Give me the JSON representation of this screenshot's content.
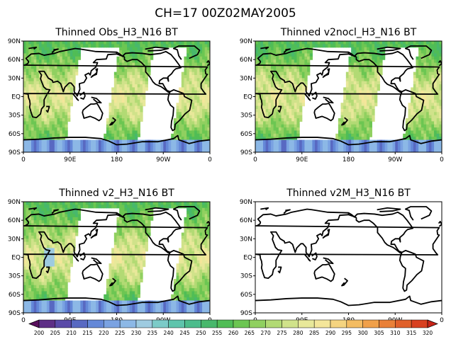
{
  "title": "CH=17    00Z02MAY2005",
  "chart_data": [
    {
      "type": "heatmap",
      "title": "Thinned Obs_H3_N16 BT",
      "x_tick_labels": [
        "0",
        "90E",
        "180",
        "90W",
        "0"
      ],
      "y_tick_labels": [
        "90N",
        "60N",
        "30N",
        "EQ",
        "30S",
        "60S",
        "90S"
      ],
      "xlim": [
        0,
        360
      ],
      "ylim": [
        -90,
        90
      ],
      "has_data": true,
      "swath_gaps": [
        [
          95,
          170
        ],
        [
          235,
          300
        ]
      ]
    },
    {
      "type": "heatmap",
      "title": "Thinned v2nocl_H3_N16 BT",
      "x_tick_labels": [
        "0",
        "90E",
        "180",
        "90W",
        "0"
      ],
      "y_tick_labels": [
        "90N",
        "60N",
        "30N",
        "EQ",
        "30S",
        "60S",
        "90S"
      ],
      "xlim": [
        0,
        360
      ],
      "ylim": [
        -90,
        90
      ],
      "has_data": true,
      "swath_gaps": [
        [
          95,
          170
        ],
        [
          235,
          300
        ]
      ]
    },
    {
      "type": "heatmap",
      "title": "Thinned v2_H3_N16 BT",
      "x_tick_labels": [
        "0",
        "90E",
        "180",
        "90W",
        "0"
      ],
      "y_tick_labels": [
        "90N",
        "60N",
        "30N",
        "EQ",
        "30S",
        "60S",
        "90S"
      ],
      "xlim": [
        0,
        360
      ],
      "ylim": [
        -90,
        90
      ],
      "has_data": true,
      "swath_gaps": [
        [
          95,
          170
        ],
        [
          235,
          300
        ]
      ]
    },
    {
      "type": "heatmap",
      "title": "Thinned v2M_H3_N16 BT",
      "x_tick_labels": [
        "0",
        "90E",
        "180",
        "90W",
        "0"
      ],
      "y_tick_labels": [
        "90N",
        "60N",
        "30N",
        "EQ",
        "30S",
        "60S",
        "90S"
      ],
      "xlim": [
        0,
        360
      ],
      "ylim": [
        -90,
        90
      ],
      "has_data": false,
      "swath_gaps": []
    }
  ],
  "colorbar": {
    "levels": [
      "200",
      "205",
      "210",
      "215",
      "220",
      "225",
      "230",
      "235",
      "240",
      "245",
      "250",
      "255",
      "260",
      "265",
      "270",
      "275",
      "280",
      "285",
      "290",
      "295",
      "300",
      "305",
      "310",
      "315",
      "320"
    ],
    "colors": [
      "#5a0f5e",
      "#5e2f86",
      "#5a4aa8",
      "#5869c2",
      "#6488d8",
      "#7aa2e2",
      "#8cb8e6",
      "#9ecbe0",
      "#7ccbc8",
      "#5ec4ac",
      "#4cbc8c",
      "#48b86c",
      "#50bd56",
      "#6cc652",
      "#90d060",
      "#b2da74",
      "#d0e28a",
      "#e8e89a",
      "#f4e69a",
      "#f5d480",
      "#f4bc62",
      "#f0a04a",
      "#e98038",
      "#e0602a",
      "#d84020",
      "#c82418"
    ]
  }
}
